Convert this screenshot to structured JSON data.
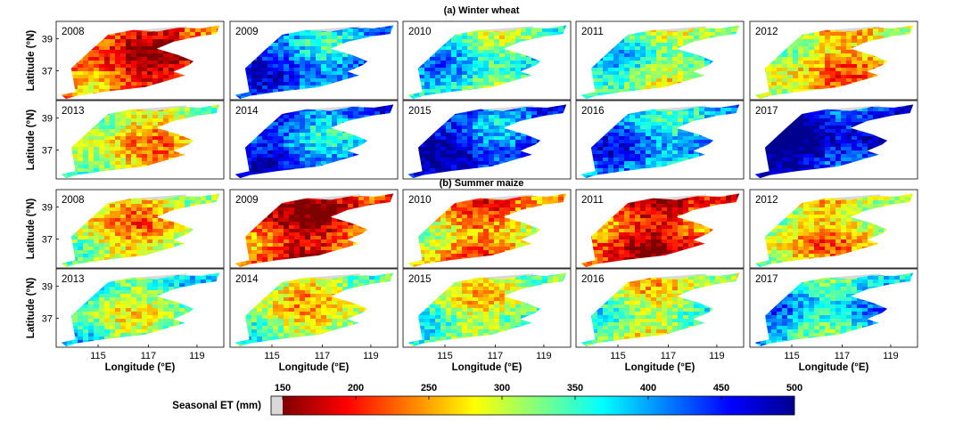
{
  "chart_data": {
    "type": "heatmap",
    "figure": "Seasonal ET maps, small multiples",
    "sections": [
      {
        "key": "wheat",
        "title": "(a) Winter wheat",
        "years": [
          "2008",
          "2009",
          "2010",
          "2011",
          "2012",
          "2013",
          "2014",
          "2015",
          "2016",
          "2017"
        ],
        "relative_level": [
          0.18,
          0.78,
          0.62,
          0.56,
          0.38,
          0.42,
          0.8,
          0.85,
          0.75,
          0.95
        ]
      },
      {
        "key": "maize",
        "title": "(b) Summer maize",
        "years": [
          "2008",
          "2009",
          "2010",
          "2011",
          "2012",
          "2013",
          "2014",
          "2015",
          "2016",
          "2017"
        ],
        "relative_level": [
          0.4,
          0.16,
          0.32,
          0.18,
          0.4,
          0.55,
          0.46,
          0.5,
          0.49,
          0.68
        ]
      }
    ],
    "ylabel": "Latitude (°N)",
    "xlabel": "Longitude (°E)",
    "y_ticks": [
      "39",
      "37"
    ],
    "x_ticks": [
      "115",
      "117",
      "119"
    ],
    "colorbar": {
      "label": "Seasonal ET (mm)",
      "ticks": [
        "150",
        "200",
        "250",
        "300",
        "350",
        "400",
        "450",
        "500"
      ],
      "range": [
        150,
        500
      ],
      "nodata_color": "#d9d9d9",
      "colormap": "jet_reversed",
      "colors": [
        "#7f0000",
        "#ff0000",
        "#ff8000",
        "#ffff00",
        "#80ff80",
        "#00ffff",
        "#0080ff",
        "#0000ff",
        "#00008f"
      ]
    }
  }
}
